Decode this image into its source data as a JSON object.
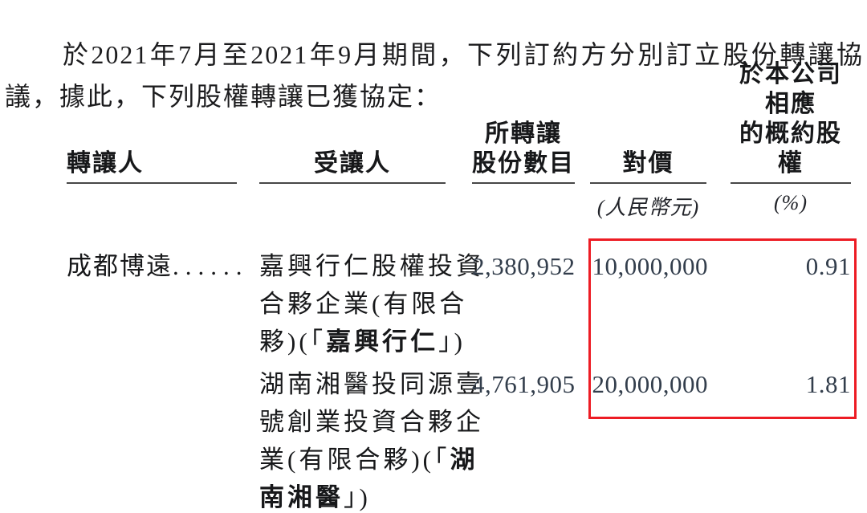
{
  "intro": {
    "text": "於2021年7月至2021年9月期間，下列訂約方分別訂立股份轉讓協議，據此，下列股權轉讓已獲協定："
  },
  "table": {
    "headers": {
      "transferor": "轉讓人",
      "transferee": "受讓人",
      "shares_line1": "所轉讓",
      "shares_line2": "股份數目",
      "consideration": "對價",
      "consideration_unit": "(人民幣元)",
      "equity_line1": "於本公司相應",
      "equity_line2": "的概約股權",
      "equity_unit": "(%)"
    },
    "rows": [
      {
        "transferor": "成都博遠",
        "leaders": "......",
        "transferee_lines": [
          {
            "pre": "嘉興行仁股權投資",
            "bold": "",
            "post": ""
          },
          {
            "pre": "合夥企業(有限合",
            "bold": "",
            "post": ""
          },
          {
            "pre": "夥)(「",
            "bold": "嘉興行仁",
            "post": "」)"
          }
        ],
        "shares": "2,380,952",
        "consideration": "10,000,000",
        "equity_pct": "0.91"
      },
      {
        "transferor": "",
        "leaders": "",
        "transferee_lines": [
          {
            "pre": "湖南湘醫投同源壹",
            "bold": "",
            "post": ""
          },
          {
            "pre": "號創業投資合夥企",
            "bold": "",
            "post": ""
          },
          {
            "pre": "業(有限合夥)(「",
            "bold": "湖",
            "post": ""
          },
          {
            "pre": "",
            "bold": "南湘醫",
            "post": "」)"
          }
        ],
        "shares": "4,761,905",
        "consideration": "20,000,000",
        "equity_pct": "1.81"
      }
    ]
  },
  "annotation": {
    "highlight_box_color": "#ed1c24"
  }
}
